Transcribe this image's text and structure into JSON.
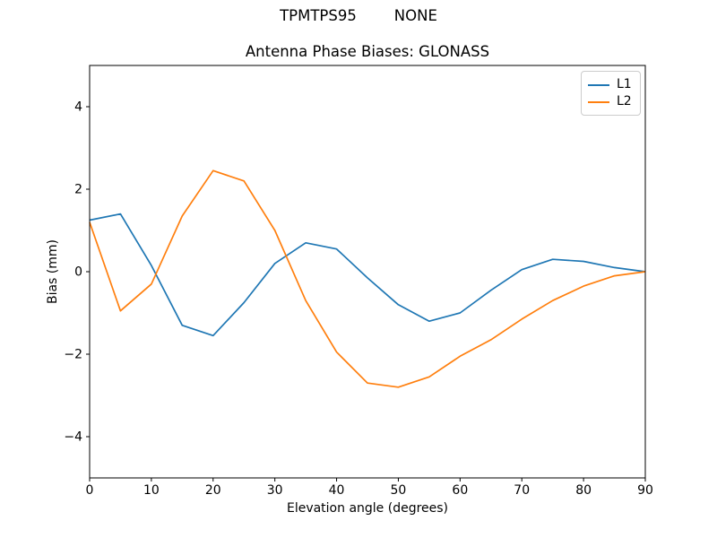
{
  "suptitle": "TPMTPS95        NONE",
  "chart_data": {
    "type": "line",
    "title": "Antenna Phase Biases: GLONASS",
    "xlabel": "Elevation angle (degrees)",
    "ylabel": "Bias (mm)",
    "xlim": [
      0,
      90
    ],
    "ylim": [
      -5,
      5
    ],
    "xticks": [
      0,
      10,
      20,
      30,
      40,
      50,
      60,
      70,
      80,
      90
    ],
    "yticks": [
      -4,
      -2,
      0,
      2,
      4
    ],
    "grid": false,
    "legend_position": "upper right",
    "x": [
      0,
      5,
      10,
      15,
      20,
      25,
      30,
      35,
      40,
      45,
      50,
      55,
      60,
      65,
      70,
      75,
      80,
      85,
      90
    ],
    "series": [
      {
        "name": "L1",
        "color": "#1f77b4",
        "values": [
          1.25,
          1.4,
          0.15,
          -1.3,
          -1.55,
          -0.75,
          0.2,
          0.7,
          0.55,
          -0.15,
          -0.8,
          -1.2,
          -1.0,
          -0.45,
          0.05,
          0.3,
          0.25,
          0.1,
          0.0
        ]
      },
      {
        "name": "L2",
        "color": "#ff7f0e",
        "values": [
          1.2,
          -0.95,
          -0.3,
          1.35,
          2.45,
          2.2,
          1.0,
          -0.7,
          -1.95,
          -2.7,
          -2.8,
          -2.55,
          -2.05,
          -1.65,
          -1.15,
          -0.7,
          -0.35,
          -0.1,
          0.0
        ]
      }
    ]
  }
}
